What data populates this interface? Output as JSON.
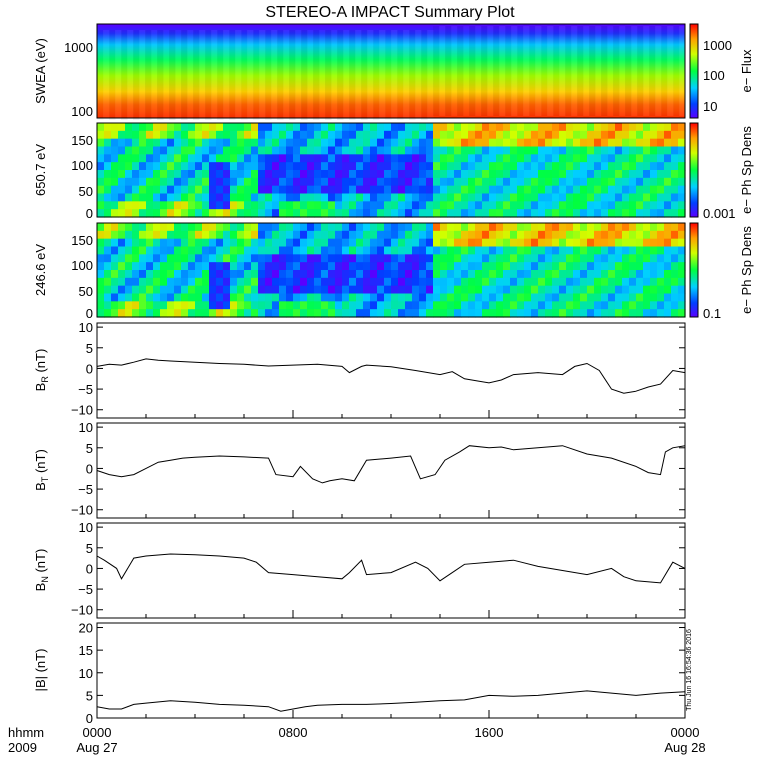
{
  "title": "STEREO-A IMPACT Summary Plot",
  "timestamp": "Thu Jun 16 16:54:36 2016",
  "footer": {
    "hhmm": "hhmm",
    "year": "2009"
  },
  "x_ticks": [
    "0000",
    "0800",
    "1600",
    "0000"
  ],
  "date_labels": [
    "Aug 27",
    "Aug 28"
  ],
  "colors": {
    "line": "#000000",
    "background": "#ffffff"
  },
  "chart_data": [
    {
      "type": "heatmap",
      "ylabel": "SWEA (eV)",
      "yscale": "log",
      "yticks": [
        "1000",
        "100"
      ],
      "colorbar_label": "e− Flux",
      "colorbar_ticks": [
        "1000",
        "100",
        "10"
      ],
      "description_colors": [
        "#2a00ff",
        "#00ff40",
        "#ffd000",
        "#ff3000"
      ]
    },
    {
      "type": "heatmap",
      "ylabel": "650.7 eV",
      "yticks": [
        "150",
        "100",
        "50",
        "0"
      ],
      "ylim": [
        0,
        180
      ],
      "colorbar_label": "e− Ph Sp Dens",
      "colorbar_ticks": [
        "0.001"
      ]
    },
    {
      "type": "heatmap",
      "ylabel": "246.6 eV",
      "yticks": [
        "150",
        "100",
        "50",
        "0"
      ],
      "ylim": [
        0,
        180
      ],
      "colorbar_label": "e− Ph Sp Dens",
      "colorbar_ticks": [
        "0.1"
      ]
    },
    {
      "type": "line",
      "ylabel_main": "B",
      "ylabel_sub": "R",
      "ylabel_unit": " (nT)",
      "ylim": [
        -12,
        11
      ],
      "yticks": [
        "10",
        "5",
        "0",
        "−5",
        "−10"
      ],
      "x": [
        0,
        0.5,
        1,
        1.5,
        2,
        2.5,
        3,
        4,
        5,
        6,
        7,
        8,
        9,
        10,
        10.3,
        10.8,
        11,
        12,
        13,
        14,
        14.5,
        15,
        16,
        16.5,
        17,
        18,
        19,
        19.5,
        20,
        20.5,
        21,
        21.5,
        22,
        22.5,
        23,
        23.5,
        24
      ],
      "y": [
        0.5,
        1,
        0.8,
        1.5,
        2.3,
        2,
        1.8,
        1.5,
        1.2,
        1,
        0.6,
        0.8,
        1,
        0.5,
        -1,
        0.5,
        0.8,
        0.4,
        -0.5,
        -1.5,
        -0.8,
        -2.5,
        -3.5,
        -2.8,
        -1.5,
        -1,
        -1.5,
        0.5,
        1.2,
        -0.5,
        -5,
        -6,
        -5.5,
        -4.5,
        -3.8,
        -0.5,
        -1
      ]
    },
    {
      "type": "line",
      "ylabel_main": "B",
      "ylabel_sub": "T",
      "ylabel_unit": " (nT)",
      "ylim": [
        -12,
        11
      ],
      "yticks": [
        "10",
        "5",
        "0",
        "−5",
        "−10"
      ],
      "x": [
        0,
        0.5,
        1,
        1.5,
        2,
        2.5,
        3,
        3.5,
        4,
        5,
        6,
        7,
        7.3,
        8,
        8.3,
        8.8,
        9.2,
        9.5,
        10,
        10.5,
        11,
        12,
        12.8,
        13.2,
        13.8,
        14.2,
        14.8,
        15.2,
        16,
        16.5,
        17,
        18,
        19,
        20,
        21,
        22,
        22.5,
        23,
        23.2,
        23.5,
        24
      ],
      "y": [
        -0.5,
        -1.5,
        -2,
        -1.5,
        0,
        1.5,
        2,
        2.5,
        2.7,
        3,
        2.8,
        2.5,
        -1.5,
        -2,
        0.5,
        -2.5,
        -3.5,
        -3,
        -2.5,
        -3,
        2,
        2.5,
        3,
        -2.5,
        -1.5,
        2,
        4,
        5.5,
        5,
        5.2,
        4.5,
        5,
        5.5,
        3.5,
        2.5,
        0.5,
        -1,
        -1.5,
        4,
        5,
        5.5
      ]
    },
    {
      "type": "line",
      "ylabel_main": "B",
      "ylabel_sub": "N",
      "ylabel_unit": " (nT)",
      "ylim": [
        -12,
        11
      ],
      "yticks": [
        "10",
        "5",
        "0",
        "−5",
        "−10"
      ],
      "x": [
        0,
        0.3,
        0.8,
        1,
        1.5,
        2,
        3,
        4,
        5,
        6,
        6.5,
        7,
        8,
        9,
        10,
        10.3,
        10.8,
        11,
        12,
        13,
        13.5,
        14,
        14.5,
        15,
        16,
        17,
        18,
        19,
        20,
        21,
        21.5,
        22,
        23,
        23.5,
        24
      ],
      "y": [
        3,
        2,
        0,
        -2.5,
        2.5,
        3,
        3.5,
        3.3,
        3,
        2.5,
        1.5,
        -1,
        -1.5,
        -2,
        -2.5,
        -1,
        2,
        -1.5,
        -1,
        1.5,
        0,
        -3,
        -1,
        1,
        1.5,
        2,
        0.5,
        -0.5,
        -1.5,
        0,
        -2,
        -3,
        -3.5,
        1.5,
        0
      ]
    },
    {
      "type": "line",
      "ylabel": "|B| (nT)",
      "ylim": [
        0,
        21
      ],
      "yticks": [
        "20",
        "15",
        "10",
        "5",
        "0"
      ],
      "x": [
        0,
        0.5,
        1,
        1.5,
        2,
        3,
        4,
        5,
        6,
        7,
        7.5,
        8,
        8.5,
        9,
        10,
        11,
        12,
        13,
        14,
        15,
        15.5,
        16,
        17,
        18,
        19,
        20,
        21,
        22,
        23,
        24
      ],
      "y": [
        2.5,
        2,
        2,
        3,
        3.3,
        3.8,
        3.5,
        3,
        2.8,
        2.5,
        1.5,
        2,
        2.5,
        2.8,
        3,
        3,
        3.2,
        3.5,
        3.8,
        4,
        4.5,
        5,
        4.8,
        5,
        5.5,
        6,
        5.5,
        5,
        5.5,
        5.8
      ]
    }
  ]
}
